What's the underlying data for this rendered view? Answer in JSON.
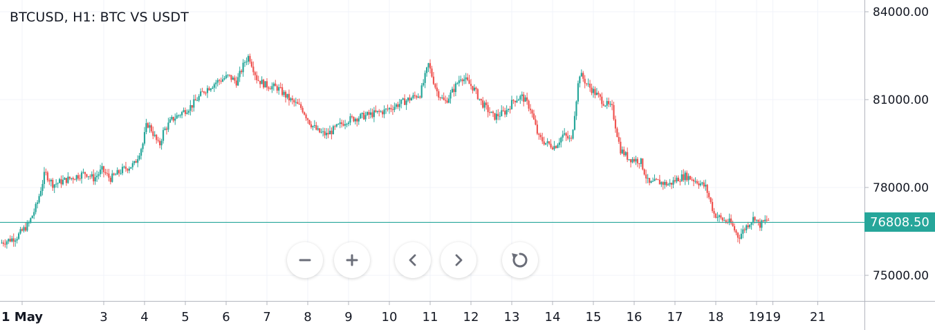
{
  "title": "BTCUSD, H1: BTC VS USDT",
  "colors": {
    "up": "#26a69a",
    "down": "#ef5350",
    "grid": "#f0f3fa",
    "axis": "#b2b5be",
    "text": "#131722",
    "last_price_line": "#26a69a"
  },
  "last_price_label": "76808.50",
  "controls": [
    {
      "name": "zoom-out-button",
      "icon": "minus-icon"
    },
    {
      "name": "zoom-in-button",
      "icon": "plus-icon"
    },
    {
      "name": "scroll-left-button",
      "icon": "chevron-left-icon"
    },
    {
      "name": "scroll-right-button",
      "icon": "chevron-right-icon"
    },
    {
      "name": "reset-button",
      "icon": "refresh-icon"
    }
  ],
  "chart_data": {
    "type": "candlestick",
    "title": "BTCUSD, H1: BTC VS USDT",
    "ylim": [
      74000,
      84400
    ],
    "y_ticks": [
      75000,
      78000,
      81000,
      84000
    ],
    "y_tick_labels": [
      "75000.00",
      "78000.00",
      "81000.00",
      "84000.00"
    ],
    "last_price": 76808.5,
    "x_ticks": [
      {
        "label": "1 May",
        "day": 1.0,
        "bold": true
      },
      {
        "label": "3",
        "day": 3.0
      },
      {
        "label": "4",
        "day": 4.0
      },
      {
        "label": "5",
        "day": 5.0
      },
      {
        "label": "6",
        "day": 6.0
      },
      {
        "label": "7",
        "day": 7.0
      },
      {
        "label": "8",
        "day": 8.0
      },
      {
        "label": "9",
        "day": 9.0
      },
      {
        "label": "10",
        "day": 10.0
      },
      {
        "label": "11",
        "day": 11.0
      },
      {
        "label": "12",
        "day": 12.0
      },
      {
        "label": "13",
        "day": 13.0
      },
      {
        "label": "14",
        "day": 14.0
      },
      {
        "label": "15",
        "day": 15.0
      },
      {
        "label": "16",
        "day": 16.0
      },
      {
        "label": "17",
        "day": 17.0
      },
      {
        "label": "18",
        "day": 18.0
      },
      {
        "label": "19",
        "day": 19.0
      },
      {
        "label": "19",
        "day": 19.4
      },
      {
        "label": "21",
        "day": 20.5
      }
    ],
    "grid": true,
    "price_path": [
      [
        0.5,
        76100
      ],
      [
        0.9,
        76300
      ],
      [
        1.2,
        76750
      ],
      [
        1.4,
        77400
      ],
      [
        1.6,
        78500
      ],
      [
        1.8,
        78100
      ],
      [
        2.2,
        78300
      ],
      [
        2.6,
        78500
      ],
      [
        2.8,
        78300
      ],
      [
        3.0,
        78600
      ],
      [
        3.2,
        78300
      ],
      [
        3.5,
        78600
      ],
      [
        3.8,
        78800
      ],
      [
        4.0,
        79500
      ],
      [
        4.1,
        80200
      ],
      [
        4.2,
        80000
      ],
      [
        4.4,
        79400
      ],
      [
        4.5,
        79900
      ],
      [
        4.7,
        80300
      ],
      [
        5.0,
        80600
      ],
      [
        5.2,
        80800
      ],
      [
        5.5,
        81300
      ],
      [
        5.8,
        81600
      ],
      [
        6.1,
        81800
      ],
      [
        6.3,
        81600
      ],
      [
        6.5,
        82300
      ],
      [
        6.6,
        82500
      ],
      [
        6.8,
        81700
      ],
      [
        7.0,
        81500
      ],
      [
        7.3,
        81400
      ],
      [
        7.6,
        81000
      ],
      [
        7.9,
        80700
      ],
      [
        8.1,
        80200
      ],
      [
        8.3,
        79900
      ],
      [
        8.5,
        79800
      ],
      [
        8.8,
        80100
      ],
      [
        9.0,
        80300
      ],
      [
        9.3,
        80400
      ],
      [
        9.6,
        80500
      ],
      [
        9.9,
        80600
      ],
      [
        10.2,
        80800
      ],
      [
        10.5,
        81000
      ],
      [
        10.8,
        81200
      ],
      [
        11.0,
        82200
      ],
      [
        11.2,
        81300
      ],
      [
        11.4,
        80900
      ],
      [
        11.6,
        81300
      ],
      [
        11.8,
        81800
      ],
      [
        12.1,
        81400
      ],
      [
        12.3,
        80900
      ],
      [
        12.6,
        80400
      ],
      [
        12.9,
        80600
      ],
      [
        13.1,
        81000
      ],
      [
        13.3,
        81100
      ],
      [
        13.5,
        80700
      ],
      [
        13.7,
        79700
      ],
      [
        13.9,
        79500
      ],
      [
        14.1,
        79400
      ],
      [
        14.3,
        79800
      ],
      [
        14.5,
        79600
      ],
      [
        14.7,
        81900
      ],
      [
        14.9,
        81500
      ],
      [
        15.1,
        81200
      ],
      [
        15.3,
        80900
      ],
      [
        15.5,
        80700
      ],
      [
        15.7,
        79300
      ],
      [
        15.9,
        79000
      ],
      [
        16.2,
        78900
      ],
      [
        16.4,
        78100
      ],
      [
        16.6,
        78200
      ],
      [
        16.9,
        78100
      ],
      [
        17.1,
        78300
      ],
      [
        17.3,
        78400
      ],
      [
        17.6,
        78200
      ],
      [
        17.8,
        78000
      ],
      [
        18.0,
        77100
      ],
      [
        18.2,
        76900
      ],
      [
        18.4,
        76800
      ],
      [
        18.6,
        76300
      ],
      [
        18.8,
        76700
      ],
      [
        19.0,
        77000
      ],
      [
        19.1,
        76700
      ],
      [
        19.3,
        76900
      ]
    ]
  }
}
